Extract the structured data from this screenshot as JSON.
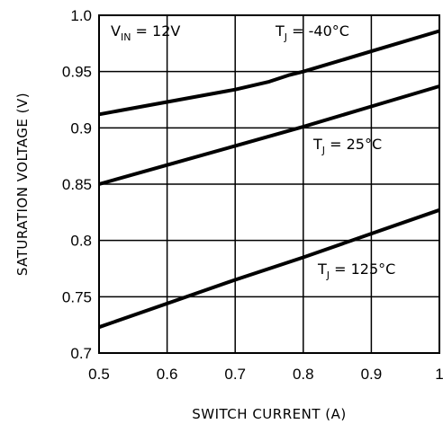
{
  "chart_data": {
    "type": "line",
    "xlabel": "SWITCH CURRENT (A)",
    "ylabel": "SATURATION VOLTAGE (V)",
    "xlim": [
      0.5,
      1.0
    ],
    "ylim": [
      0.7,
      1.0
    ],
    "x_ticks": [
      "0.5",
      "0.6",
      "0.7",
      "0.8",
      "0.9",
      "1"
    ],
    "y_ticks": [
      "0.7",
      "0.75",
      "0.8",
      "0.85",
      "0.9",
      "0.95",
      "1.0"
    ],
    "grid": true,
    "series": [
      {
        "x": [
          0.5,
          0.6,
          0.7,
          0.75,
          0.78,
          0.8,
          0.9,
          1.0
        ],
        "y": [
          0.912,
          0.923,
          0.934,
          0.941,
          0.947,
          0.95,
          0.968,
          0.986
        ]
      },
      {
        "x": [
          0.5,
          0.6,
          0.7,
          0.8,
          0.9,
          1.0
        ],
        "y": [
          0.85,
          0.867,
          0.884,
          0.901,
          0.919,
          0.937
        ]
      },
      {
        "x": [
          0.5,
          0.6,
          0.7,
          0.8,
          0.9,
          1.0
        ],
        "y": [
          0.723,
          0.744,
          0.765,
          0.785,
          0.806,
          0.827
        ]
      }
    ],
    "annotations": [
      {
        "id": "vin",
        "main": "V",
        "sub": "IN",
        "rest": " = 12V"
      },
      {
        "id": "tj-neg40",
        "main": "T",
        "sub": "J",
        "rest": " = -40°C"
      },
      {
        "id": "tj-25",
        "main": "T",
        "sub": "J",
        "rest": " = 25°C"
      },
      {
        "id": "tj-125",
        "main": "T",
        "sub": "J",
        "rest": " = 125°C"
      }
    ]
  }
}
